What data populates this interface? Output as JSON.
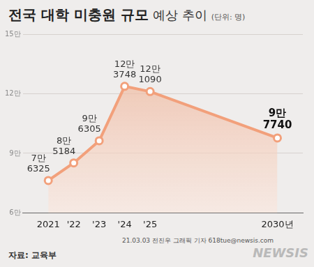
{
  "chart_data": {
    "type": "line",
    "title": "전국 대학 미충원 규모",
    "subtitle": "예상 추이",
    "unit_label": "(단위: 명)",
    "x": [
      2021,
      2022,
      2023,
      2024,
      2025,
      2030
    ],
    "values": [
      76325,
      85184,
      96305,
      123748,
      121090,
      97740
    ],
    "value_labels": [
      "7만 6325",
      "8만 5184",
      "9만 6305",
      "12만 3748",
      "12만 1090",
      "9만 7740"
    ],
    "xlim": [
      2020,
      2031
    ],
    "xticks": [
      2021,
      {
        "value": 2022,
        "label": "'22"
      },
      {
        "value": 2023,
        "label": "'23"
      },
      {
        "value": 2024,
        "label": "'24"
      },
      {
        "value": 2025,
        "label": "'25"
      },
      {
        "value": 2030,
        "label": "2030년"
      }
    ],
    "ylim": [
      60000,
      150000
    ],
    "yticks": [
      {
        "value": 60000,
        "label": "6만"
      },
      {
        "value": 90000,
        "label": "9만"
      },
      {
        "value": 120000,
        "label": "12만"
      },
      {
        "value": 150000,
        "label": "15만"
      }
    ],
    "grid": true,
    "color": "#f2a07b",
    "marker": "circle",
    "data_labels": true,
    "source": "자료: 교육부",
    "credit": "21.03.03 전진우 그래픽 기자 618tue@newsis.com",
    "watermark": "NEWSIS"
  }
}
